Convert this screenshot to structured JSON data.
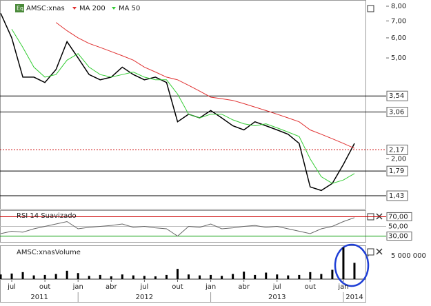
{
  "chart_data": {
    "type": "stock",
    "series": [
      {
        "name": "AMSC:xnas",
        "color": "#000000",
        "values": [
          7.5,
          6.0,
          4.2,
          4.2,
          4.0,
          4.5,
          5.8,
          5.0,
          4.3,
          4.1,
          4.2,
          4.6,
          4.3,
          4.1,
          4.2,
          4.0,
          2.8,
          3.0,
          2.9,
          3.1,
          2.9,
          2.7,
          2.6,
          2.8,
          2.7,
          2.6,
          2.5,
          2.3,
          1.55,
          1.5,
          1.6,
          1.9,
          2.3
        ]
      },
      {
        "name": "MA 200",
        "color": "#e03030",
        "values": [
          null,
          null,
          null,
          null,
          null,
          6.9,
          6.4,
          6.0,
          5.7,
          5.5,
          5.3,
          5.1,
          4.9,
          4.6,
          4.4,
          4.2,
          4.1,
          3.9,
          3.7,
          3.5,
          3.45,
          3.4,
          3.3,
          3.2,
          3.1,
          3.0,
          2.9,
          2.8,
          2.6,
          2.5,
          2.4,
          2.3,
          2.2
        ]
      },
      {
        "name": "MA 50",
        "color": "#33cc33",
        "values": [
          null,
          6.5,
          5.5,
          4.6,
          4.2,
          4.3,
          4.9,
          5.2,
          4.6,
          4.3,
          4.2,
          4.3,
          4.4,
          4.2,
          4.1,
          4.1,
          3.6,
          3.0,
          2.9,
          3.0,
          3.0,
          2.85,
          2.75,
          2.7,
          2.75,
          2.65,
          2.55,
          2.45,
          2.0,
          1.7,
          1.6,
          1.65,
          1.75
        ]
      }
    ],
    "x": [
      "2011-06",
      "2011-07",
      "2011-08",
      "2011-09",
      "2011-10",
      "2011-11",
      "2011-12",
      "2012-01",
      "2012-02",
      "2012-03",
      "2012-04",
      "2012-05",
      "2012-06",
      "2012-07",
      "2012-08",
      "2012-09",
      "2012-10",
      "2012-11",
      "2012-12",
      "2013-01",
      "2013-02",
      "2013-03",
      "2013-04",
      "2013-05",
      "2013-06",
      "2013-07",
      "2013-08",
      "2013-09",
      "2013-10",
      "2013-11",
      "2013-12",
      "2014-01",
      "2014-02"
    ],
    "xlim": [
      "2011-06",
      "2014-03"
    ],
    "log_scale": true,
    "ylim": [
      1.27,
      8.41
    ],
    "yticks": [
      {
        "value": 8,
        "label": "8,00"
      },
      {
        "value": 7,
        "label": "7,00"
      },
      {
        "value": 6,
        "label": "6,00"
      },
      {
        "value": 5,
        "label": "5,00"
      },
      {
        "value": 2,
        "label": "2,00"
      }
    ],
    "levels": [
      {
        "value": 3.54,
        "label": "3,54",
        "color": "#000000"
      },
      {
        "value": 3.06,
        "label": "3,06",
        "color": "#000000"
      },
      {
        "value": 2.17,
        "label": "2,17",
        "color": "#cc0000"
      },
      {
        "value": 1.79,
        "label": "1,79",
        "color": "#000000"
      },
      {
        "value": 1.43,
        "label": "1,43",
        "color": "#000000"
      }
    ],
    "xticks": [
      {
        "value": "2011-07",
        "label": "jul"
      },
      {
        "value": "2011-10",
        "label": "out"
      },
      {
        "value": "2012-01",
        "label": "jan"
      },
      {
        "value": "2012-04",
        "label": "abr"
      },
      {
        "value": "2012-07",
        "label": "jul"
      },
      {
        "value": "2012-10",
        "label": "out"
      },
      {
        "value": "2013-01",
        "label": "jan"
      },
      {
        "value": "2013-04",
        "label": "abr"
      },
      {
        "value": "2013-07",
        "label": "jul"
      },
      {
        "value": "2013-10",
        "label": "out"
      },
      {
        "value": "2014-01",
        "label": "jan"
      }
    ],
    "years": [
      "2011",
      "2012",
      "2013",
      "2014"
    ],
    "rsi": {
      "name": "RSI 14 Suavizado",
      "color": "#666666",
      "ylim": [
        18,
        82
      ],
      "yticks": [
        {
          "value": 70,
          "label": "70,00"
        },
        {
          "value": 50,
          "label": "50,00"
        },
        {
          "value": 30,
          "label": "30,00"
        }
      ],
      "values": [
        35,
        40,
        38,
        45,
        50,
        55,
        60,
        45,
        48,
        50,
        52,
        55,
        48,
        50,
        47,
        45,
        30,
        50,
        48,
        55,
        45,
        47,
        50,
        52,
        48,
        50,
        45,
        40,
        35,
        45,
        50,
        60,
        68
      ]
    },
    "volume": {
      "name": "AMSC:xnasVolume",
      "color": "#000000",
      "ylim": [
        0,
        7100000
      ],
      "yticks": [
        {
          "value": 5000000,
          "label": "5 000 000"
        }
      ],
      "values": [
        1000000,
        1200000,
        1500000,
        800000,
        900000,
        1100000,
        1800000,
        1300000,
        700000,
        900000,
        600000,
        1000000,
        800000,
        700000,
        600000,
        900000,
        2200000,
        1000000,
        800000,
        900000,
        700000,
        1100000,
        1600000,
        900000,
        1400000,
        1000000,
        800000,
        900000,
        1500000,
        1100000,
        2000000,
        6800000,
        3500000
      ]
    }
  }
}
